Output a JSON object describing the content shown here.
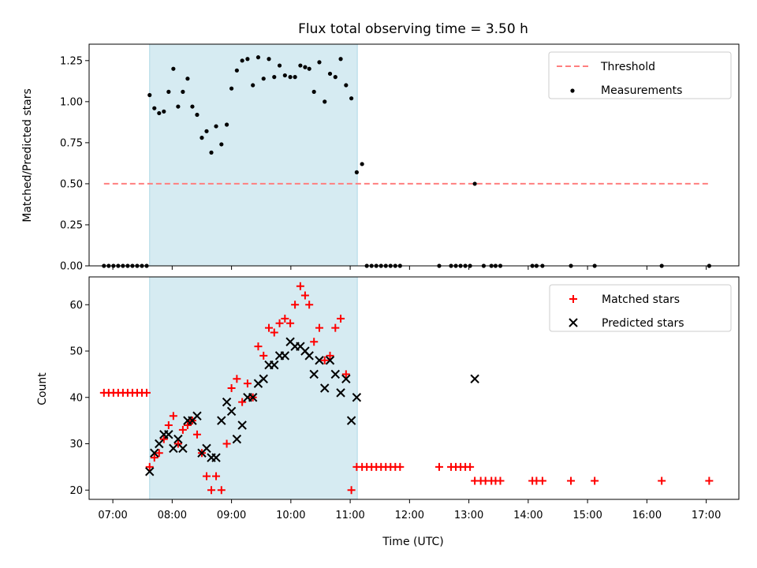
{
  "title": "Flux total observing time = 3.50 h",
  "colors": {
    "threshold": "#ff7f7f",
    "measurement": "#000000",
    "matched": "#ff0000",
    "predicted": "#000000",
    "span": "#add8e6"
  },
  "chart_data": [
    {
      "type": "scatter",
      "ylabel": "Matched/Predicted stars",
      "xlim": [
        6.6,
        17.55
      ],
      "ylim": [
        0,
        1.35
      ],
      "yticks": [
        0.0,
        0.25,
        0.5,
        0.75,
        1.0,
        1.25
      ],
      "ytick_labels": [
        "0.00",
        "0.25",
        "0.50",
        "0.75",
        "1.00",
        "1.25"
      ],
      "shaded_span": [
        7.62,
        11.12
      ],
      "legend": {
        "placement": "top-right",
        "entries": [
          "Threshold",
          "Measurements"
        ]
      },
      "threshold": {
        "name": "Threshold",
        "value": 0.5,
        "x": [
          6.85,
          17.05
        ]
      },
      "series": [
        {
          "name": "Measurements",
          "x": [
            6.85,
            6.93,
            7.01,
            7.09,
            7.17,
            7.25,
            7.33,
            7.41,
            7.49,
            7.57,
            7.62,
            7.7,
            7.78,
            7.86,
            7.94,
            8.02,
            8.1,
            8.18,
            8.26,
            8.34,
            8.42,
            8.5,
            8.58,
            8.66,
            8.74,
            8.83,
            8.92,
            9.0,
            9.09,
            9.18,
            9.27,
            9.36,
            9.45,
            9.54,
            9.63,
            9.72,
            9.81,
            9.9,
            9.99,
            10.07,
            10.16,
            10.24,
            10.31,
            10.39,
            10.48,
            10.57,
            10.66,
            10.75,
            10.84,
            10.93,
            11.02,
            11.11,
            11.2,
            11.28,
            11.36,
            11.44,
            11.52,
            11.6,
            11.68,
            11.76,
            11.84,
            12.5,
            12.7,
            12.78,
            12.86,
            12.94,
            13.02,
            13.1,
            13.25,
            13.38,
            13.45,
            13.53,
            14.07,
            14.14,
            14.24,
            14.72,
            15.12,
            16.25,
            17.05
          ],
          "y": [
            0,
            0,
            0,
            0,
            0,
            0,
            0,
            0,
            0,
            0,
            1.04,
            0.96,
            0.93,
            0.94,
            1.06,
            1.2,
            0.97,
            1.06,
            1.14,
            0.97,
            0.92,
            0.78,
            0.82,
            0.69,
            0.85,
            0.74,
            0.86,
            1.08,
            1.19,
            1.25,
            1.26,
            1.1,
            1.27,
            1.14,
            1.26,
            1.15,
            1.22,
            1.16,
            1.15,
            1.15,
            1.22,
            1.21,
            1.2,
            1.06,
            1.24,
            1.0,
            1.17,
            1.15,
            1.26,
            1.1,
            1.02,
            0.57,
            0.62,
            0,
            0,
            0,
            0,
            0,
            0,
            0,
            0,
            0,
            0,
            0,
            0,
            0,
            0,
            0.5,
            0,
            0,
            0,
            0,
            0,
            0,
            0,
            0,
            0,
            0,
            0
          ]
        }
      ]
    },
    {
      "type": "scatter",
      "ylabel": "Count",
      "xlabel": "Time (UTC)",
      "xlim": [
        6.6,
        17.55
      ],
      "ylim": [
        18,
        66
      ],
      "yticks": [
        20,
        30,
        40,
        50,
        60
      ],
      "xticks": [
        7,
        8,
        9,
        10,
        11,
        12,
        13,
        14,
        15,
        16,
        17
      ],
      "xtick_labels": [
        "07:00",
        "08:00",
        "09:00",
        "10:00",
        "11:00",
        "12:00",
        "13:00",
        "14:00",
        "15:00",
        "16:00",
        "17:00"
      ],
      "shaded_span": [
        7.62,
        11.12
      ],
      "legend": {
        "placement": "top-right",
        "entries": [
          "Matched stars",
          "Predicted stars"
        ]
      },
      "series": [
        {
          "name": "Matched stars",
          "marker": "plus",
          "x": [
            6.85,
            6.93,
            7.01,
            7.09,
            7.17,
            7.25,
            7.33,
            7.41,
            7.49,
            7.57,
            7.62,
            7.7,
            7.78,
            7.86,
            7.94,
            8.02,
            8.1,
            8.18,
            8.26,
            8.34,
            8.42,
            8.5,
            8.58,
            8.66,
            8.74,
            8.83,
            8.92,
            9.0,
            9.09,
            9.18,
            9.27,
            9.36,
            9.45,
            9.54,
            9.63,
            9.72,
            9.81,
            9.9,
            9.99,
            10.07,
            10.16,
            10.24,
            10.31,
            10.39,
            10.48,
            10.57,
            10.66,
            10.75,
            10.84,
            10.93,
            11.02,
            11.11,
            11.2,
            11.28,
            11.36,
            11.44,
            11.52,
            11.6,
            11.68,
            11.76,
            11.84,
            12.5,
            12.7,
            12.78,
            12.86,
            12.94,
            13.02,
            13.1,
            13.2,
            13.28,
            13.38,
            13.45,
            13.53,
            14.07,
            14.14,
            14.24,
            14.72,
            15.12,
            16.25,
            17.05
          ],
          "y": [
            41,
            41,
            41,
            41,
            41,
            41,
            41,
            41,
            41,
            41,
            25,
            27,
            28,
            31,
            34,
            36,
            30,
            33,
            34,
            35,
            32,
            28,
            23,
            20,
            23,
            20,
            30,
            42,
            44,
            39,
            43,
            40,
            51,
            49,
            55,
            54,
            56,
            57,
            56,
            60,
            64,
            62,
            60,
            52,
            55,
            48,
            49,
            55,
            57,
            45,
            20,
            25,
            25,
            25,
            25,
            25,
            25,
            25,
            25,
            25,
            25,
            25,
            25,
            25,
            25,
            25,
            25,
            22,
            22,
            22,
            22,
            22,
            22,
            22,
            22,
            22,
            22,
            22,
            22,
            22
          ]
        },
        {
          "name": "Predicted stars",
          "marker": "x",
          "x": [
            7.62,
            7.7,
            7.78,
            7.86,
            7.94,
            8.02,
            8.1,
            8.18,
            8.26,
            8.34,
            8.42,
            8.5,
            8.58,
            8.66,
            8.74,
            8.83,
            8.92,
            9.0,
            9.09,
            9.18,
            9.27,
            9.36,
            9.45,
            9.54,
            9.63,
            9.72,
            9.81,
            9.9,
            9.99,
            10.07,
            10.16,
            10.24,
            10.31,
            10.39,
            10.48,
            10.57,
            10.66,
            10.75,
            10.84,
            10.93,
            11.02,
            11.11,
            13.1
          ],
          "y": [
            24,
            28,
            30,
            32,
            32,
            29,
            31,
            29,
            35,
            35,
            36,
            28,
            29,
            27,
            27,
            35,
            39,
            37,
            31,
            34,
            40,
            40,
            43,
            44,
            47,
            47,
            49,
            49,
            52,
            51,
            51,
            50,
            49,
            45,
            48,
            42,
            48,
            45,
            41,
            44,
            35,
            40,
            44
          ]
        }
      ]
    }
  ]
}
